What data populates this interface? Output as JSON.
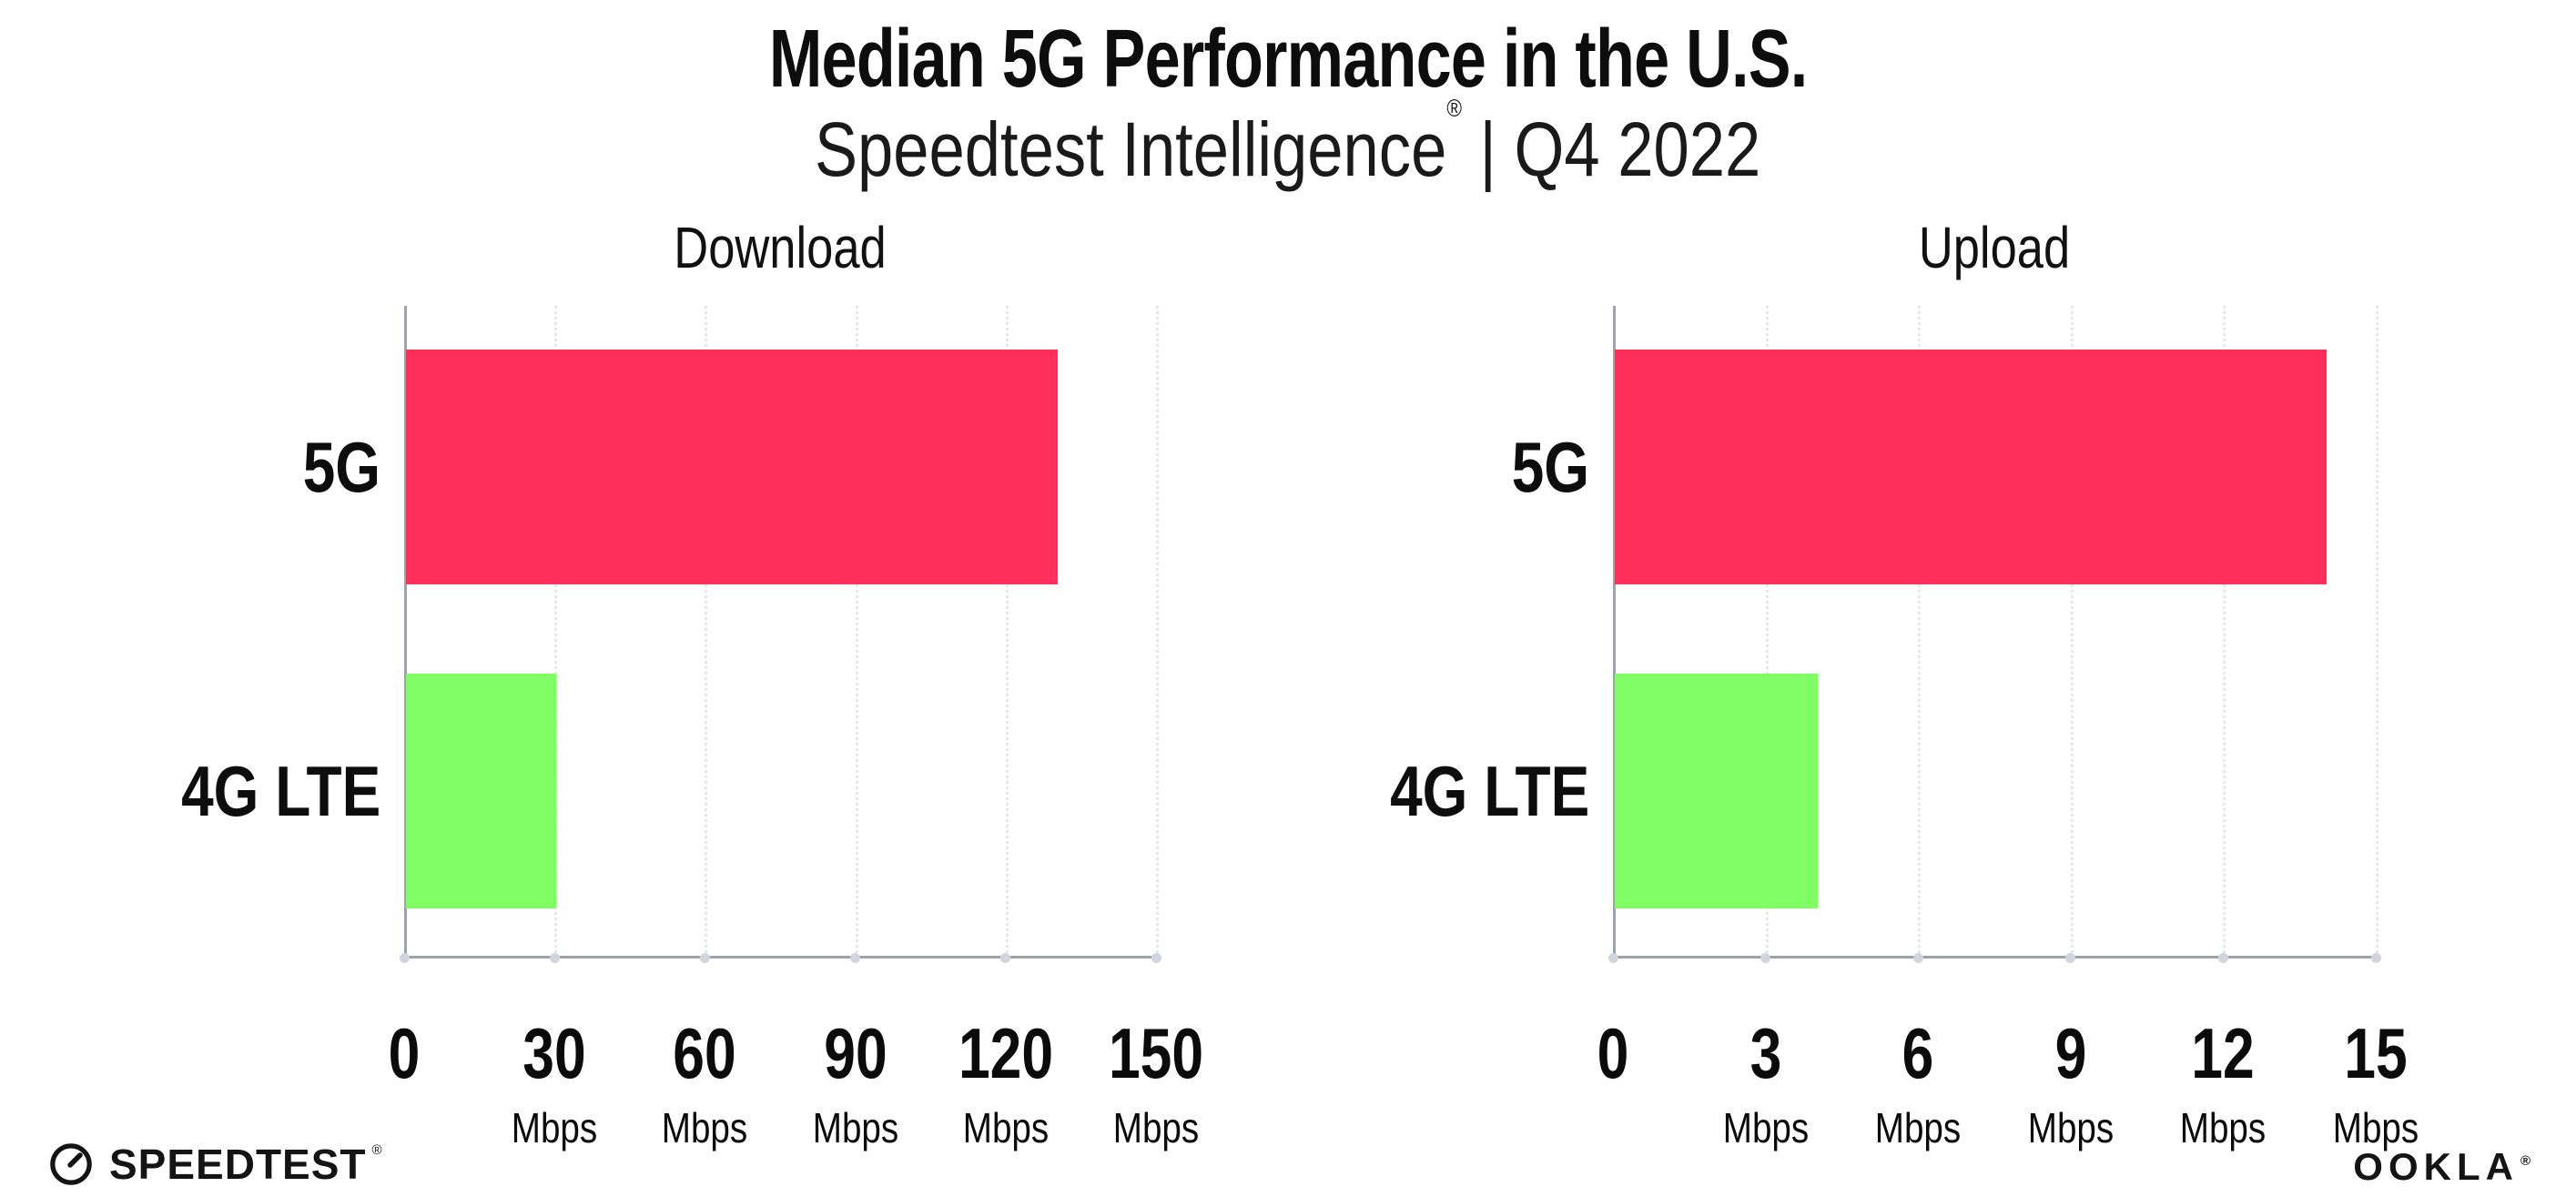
{
  "header": {
    "title": "Median 5G Performance in the U.S.",
    "subtitle_brand": "Speedtest Intelligence",
    "subtitle_mark": "®",
    "subtitle_suffix": " | Q4 2022"
  },
  "chart_data": [
    {
      "type": "bar",
      "orientation": "horizontal",
      "title": "Download",
      "categories": [
        "5G",
        "4G LTE"
      ],
      "values": [
        130,
        30
      ],
      "unit": "Mbps",
      "xlabel": "",
      "ylabel": "",
      "xlim": [
        0,
        150
      ],
      "xticks": [
        0,
        30,
        60,
        90,
        120,
        150
      ],
      "bar_colors": [
        "#FF2E5B",
        "#80FC64"
      ],
      "grid": "vertical-dotted",
      "legend": "none"
    },
    {
      "type": "bar",
      "orientation": "horizontal",
      "title": "Upload",
      "categories": [
        "5G",
        "4G LTE"
      ],
      "values": [
        14,
        4
      ],
      "unit": "Mbps",
      "xlabel": "",
      "ylabel": "",
      "xlim": [
        0,
        15
      ],
      "xticks": [
        0,
        3,
        6,
        9,
        12,
        15
      ],
      "bar_colors": [
        "#FF2E5B",
        "#80FC64"
      ],
      "grid": "vertical-dotted",
      "legend": "none"
    }
  ],
  "footer": {
    "speedtest_label": "SPEEDTEST",
    "speedtest_mark": "®",
    "ookla_label": "OOKLA",
    "ookla_mark": "®"
  },
  "colors": {
    "bar_5g": "#FF2E5B",
    "bar_4g_lte": "#80FC64",
    "axis": "#9FA1AB",
    "gridline": "#E6E6F1"
  }
}
